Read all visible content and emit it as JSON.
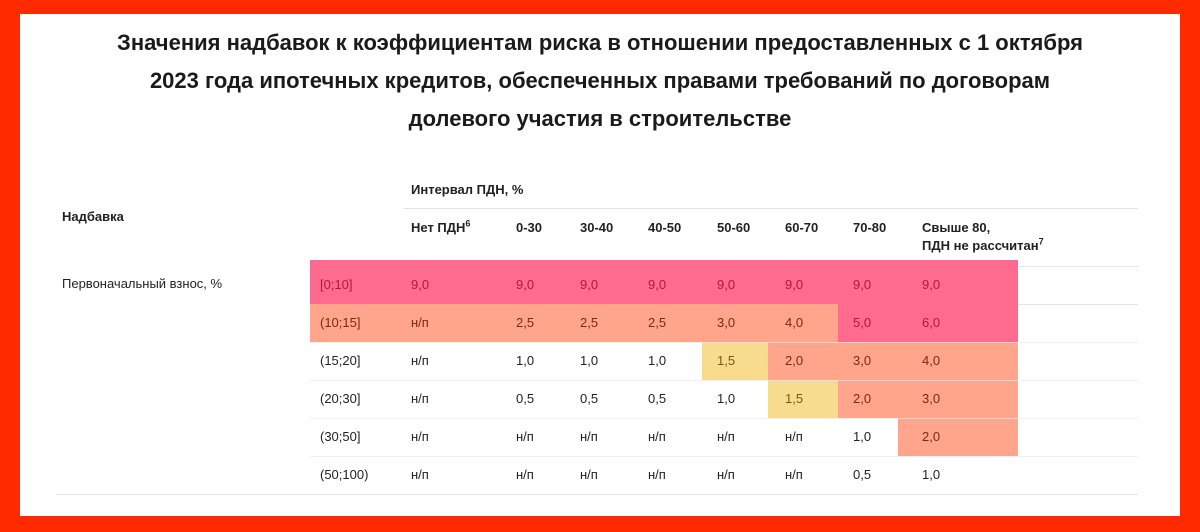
{
  "title": {
    "line1": "Значения надбавок к коэффициентам риска в отношении предоставленных с 1 октября",
    "line2": "2023 года ипотечных кредитов, обеспеченных правами требований по договорам",
    "line3": "долевого участия в строительстве"
  },
  "table": {
    "row_header": "Надбавка",
    "interval_header": "Интервал ПДН, %",
    "row_group_label": "Первоначальный взнос, %",
    "columns": [
      {
        "label": "Нет ПДН",
        "sup": "6"
      },
      {
        "label": "0-30"
      },
      {
        "label": "30-40"
      },
      {
        "label": "40-50"
      },
      {
        "label": "50-60"
      },
      {
        "label": "60-70"
      },
      {
        "label": "70-80"
      },
      {
        "label": "Свыше 80,",
        "label2": "ПДН не рассчитан",
        "sup": "7"
      }
    ],
    "rows": [
      {
        "band": "[0;10]",
        "values": [
          "9,0",
          "9,0",
          "9,0",
          "9,0",
          "9,0",
          "9,0",
          "9,0",
          "9,0"
        ]
      },
      {
        "band": "(10;15]",
        "values": [
          "н/п",
          "2,5",
          "2,5",
          "2,5",
          "3,0",
          "4,0",
          "5,0",
          "6,0"
        ]
      },
      {
        "band": "(15;20]",
        "values": [
          "н/п",
          "1,0",
          "1,0",
          "1,0",
          "1,5",
          "2,0",
          "3,0",
          "4,0"
        ]
      },
      {
        "band": "(20;30]",
        "values": [
          "н/п",
          "0,5",
          "0,5",
          "0,5",
          "1,0",
          "1,5",
          "2,0",
          "3,0"
        ]
      },
      {
        "band": "(30;50]",
        "values": [
          "н/п",
          "н/п",
          "н/п",
          "н/п",
          "н/п",
          "н/п",
          "1,0",
          "2,0"
        ]
      },
      {
        "band": "(50;100)",
        "values": [
          "н/п",
          "н/п",
          "н/п",
          "н/п",
          "н/п",
          "н/п",
          "0,5",
          "1,0"
        ]
      }
    ]
  },
  "colors": {
    "frame": "#ff2a00",
    "high": "#ff6b8e",
    "medium": "#ffa58c",
    "low": "#f7dc8e"
  }
}
